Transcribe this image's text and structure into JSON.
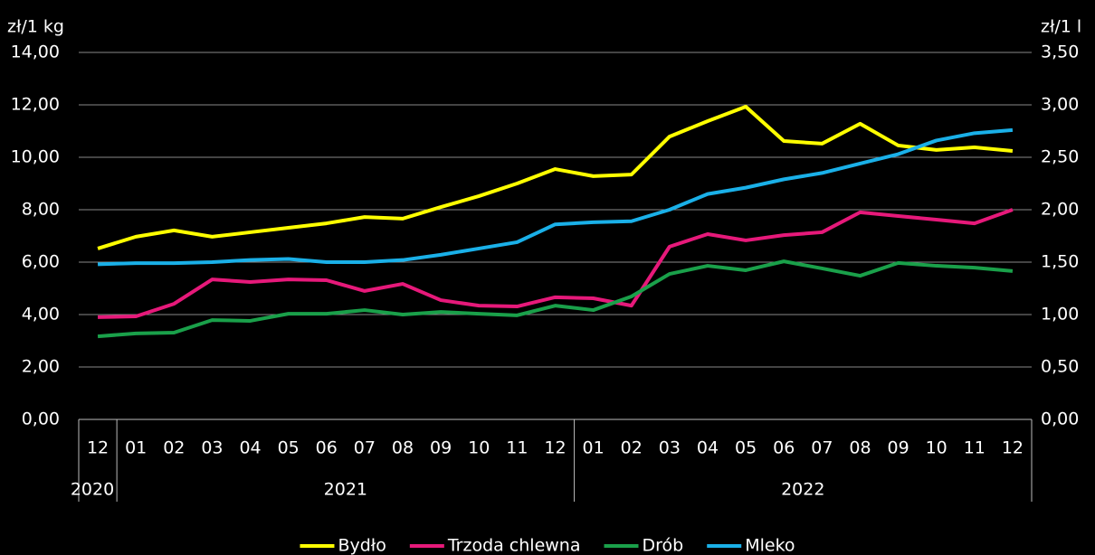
{
  "chart_data": {
    "type": "line",
    "y_label": "zł/1 kg",
    "y2_label": "zł/1 l",
    "categories": [
      "12",
      "01",
      "02",
      "03",
      "04",
      "05",
      "06",
      "07",
      "08",
      "09",
      "10",
      "11",
      "12",
      "01",
      "02",
      "03",
      "04",
      "05",
      "06",
      "07",
      "08",
      "09",
      "10",
      "11",
      "12"
    ],
    "category_years": [
      "2020",
      "2021",
      "2021",
      "2021",
      "2021",
      "2021",
      "2021",
      "2021",
      "2021",
      "2021",
      "2021",
      "2021",
      "2021",
      "2022",
      "2022",
      "2022",
      "2022",
      "2022",
      "2022",
      "2022",
      "2022",
      "2022",
      "2022",
      "2022",
      "2022"
    ],
    "ylim": [
      0,
      14
    ],
    "yticks": [
      {
        "value": 0,
        "label": "0,00"
      },
      {
        "value": 2,
        "label": "2,00"
      },
      {
        "value": 4,
        "label": "4,00"
      },
      {
        "value": 6,
        "label": "6,00"
      },
      {
        "value": 8,
        "label": "8,00"
      },
      {
        "value": 10,
        "label": "10,00"
      },
      {
        "value": 12,
        "label": "12,00"
      },
      {
        "value": 14,
        "label": "14,00"
      }
    ],
    "y2lim": [
      0,
      3.5
    ],
    "y2ticks": [
      {
        "value": 0,
        "label": "0,00"
      },
      {
        "value": 0.5,
        "label": "0,50"
      },
      {
        "value": 1,
        "label": "1,00"
      },
      {
        "value": 1.5,
        "label": "1,50"
      },
      {
        "value": 2,
        "label": "2,00"
      },
      {
        "value": 2.5,
        "label": "2,50"
      },
      {
        "value": 3,
        "label": "3,00"
      },
      {
        "value": 3.5,
        "label": "3,50"
      }
    ],
    "grid": true,
    "legend": "bottom",
    "series": [
      {
        "name": "Bydło",
        "color": "#ffff00",
        "values": [
          6.52,
          6.97,
          7.21,
          6.97,
          7.14,
          7.31,
          7.48,
          7.72,
          7.66,
          8.1,
          8.52,
          9.0,
          9.55,
          9.28,
          9.34,
          10.79,
          11.38,
          11.93,
          10.62,
          10.52,
          11.28,
          10.45,
          10.28,
          10.38,
          10.24
        ]
      },
      {
        "name": "Trzoda chlewna",
        "color": "#e6197a",
        "values": [
          3.9,
          3.93,
          4.41,
          5.34,
          5.24,
          5.34,
          5.31,
          4.9,
          5.17,
          4.55,
          4.34,
          4.31,
          4.66,
          4.62,
          4.34,
          6.59,
          7.07,
          6.83,
          7.03,
          7.14,
          7.9,
          7.76,
          7.62,
          7.48,
          8.0
        ]
      },
      {
        "name": "Drób",
        "color": "#1aa04a",
        "values": [
          3.17,
          3.28,
          3.31,
          3.79,
          3.76,
          4.03,
          4.03,
          4.17,
          4.0,
          4.1,
          4.03,
          3.97,
          4.34,
          4.17,
          4.69,
          5.55,
          5.86,
          5.69,
          6.03,
          5.76,
          5.48,
          5.97,
          5.86,
          5.79,
          5.66
        ]
      },
      {
        "name": "Mleko",
        "color": "#1ab0e8",
        "axis": "y2",
        "values": [
          1.48,
          1.49,
          1.49,
          1.5,
          1.52,
          1.53,
          1.5,
          1.5,
          1.52,
          1.57,
          1.63,
          1.69,
          1.86,
          1.88,
          1.89,
          2.0,
          2.15,
          2.21,
          2.29,
          2.35,
          2.44,
          2.53,
          2.66,
          2.73,
          2.76
        ]
      }
    ]
  }
}
